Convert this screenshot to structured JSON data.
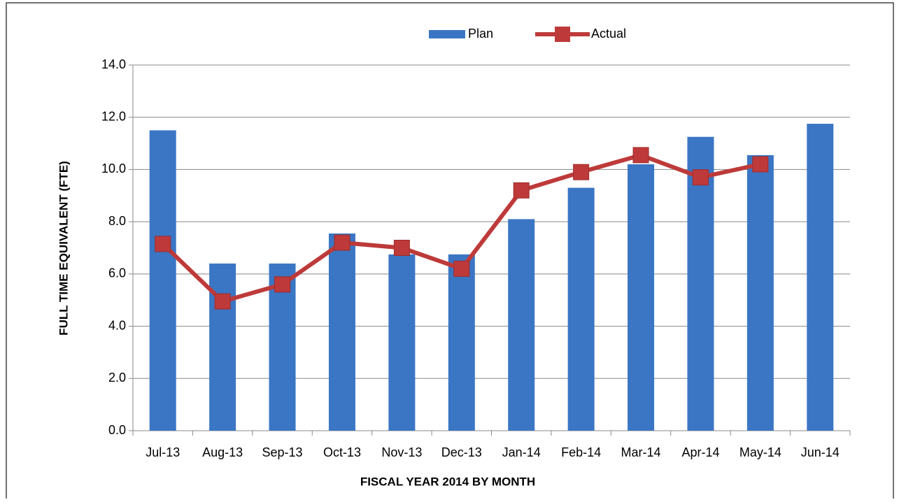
{
  "chart_data": {
    "type": "bar_line",
    "x_label": "FISCAL YEAR 2014 BY MONTH",
    "y_label": "FULL TIME EQUIVALENT (FTE)",
    "categories": [
      "Jul-13",
      "Aug-13",
      "Sep-13",
      "Oct-13",
      "Nov-13",
      "Dec-13",
      "Jan-14",
      "Feb-14",
      "Mar-14",
      "Apr-14",
      "May-14",
      "Jun-14"
    ],
    "series": [
      {
        "name": "Plan",
        "type": "bar",
        "color": "#3a76c4",
        "values": [
          11.5,
          6.4,
          6.4,
          7.55,
          6.75,
          6.75,
          8.1,
          9.3,
          10.2,
          11.25,
          10.55,
          11.75
        ]
      },
      {
        "name": "Actual",
        "type": "line",
        "color": "#be3a3a",
        "values": [
          7.15,
          4.95,
          5.6,
          7.2,
          7.0,
          6.2,
          9.2,
          9.9,
          10.55,
          9.7,
          10.2,
          null
        ]
      }
    ],
    "ylim": [
      0,
      14
    ],
    "yticks": [
      {
        "value": 0,
        "label": "0.0"
      },
      {
        "value": 2,
        "label": "2.0"
      },
      {
        "value": 4,
        "label": "4.0"
      },
      {
        "value": 6,
        "label": "6.0"
      },
      {
        "value": 8,
        "label": "8.0"
      },
      {
        "value": 10,
        "label": "10.0"
      },
      {
        "value": 12,
        "label": "12.0"
      },
      {
        "value": 14,
        "label": "14.0"
      }
    ],
    "grid": true,
    "legend": "top"
  }
}
